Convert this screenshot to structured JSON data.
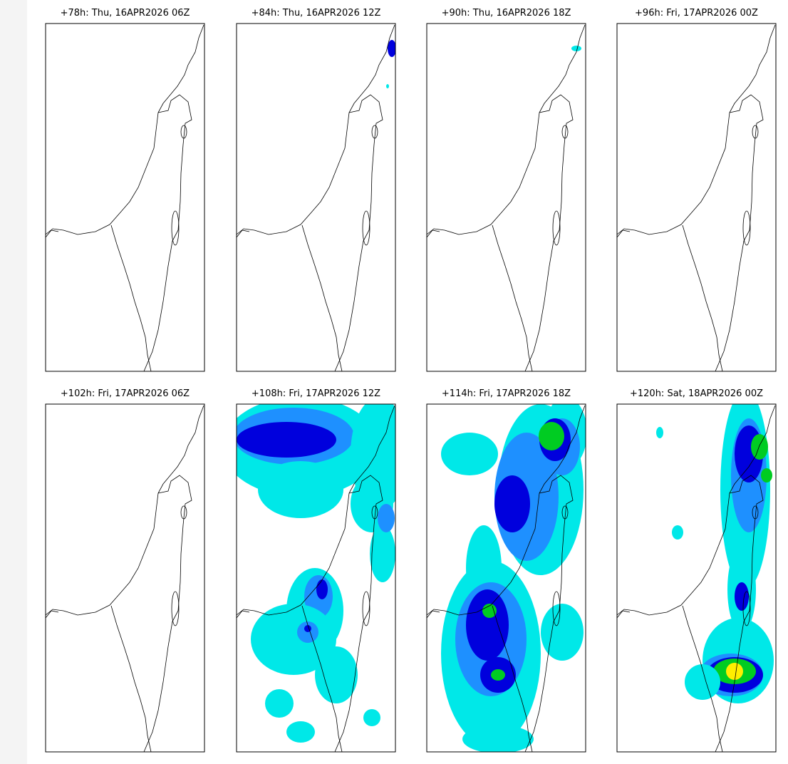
{
  "panels": [
    {
      "title": "+78h: Thu, 16APR2026 06Z"
    },
    {
      "title": "+84h: Thu, 16APR2026 12Z"
    },
    {
      "title": "+90h: Thu, 16APR2026 18Z"
    },
    {
      "title": "+96h: Fri, 17APR2026 00Z"
    },
    {
      "title": "+102h: Fri, 17APR2026 06Z"
    },
    {
      "title": "+108h: Fri, 17APR2026 12Z"
    },
    {
      "title": "+114h: Fri, 17APR2026 18Z"
    },
    {
      "title": "+120h: Sat, 18APR2026 00Z"
    }
  ]
}
